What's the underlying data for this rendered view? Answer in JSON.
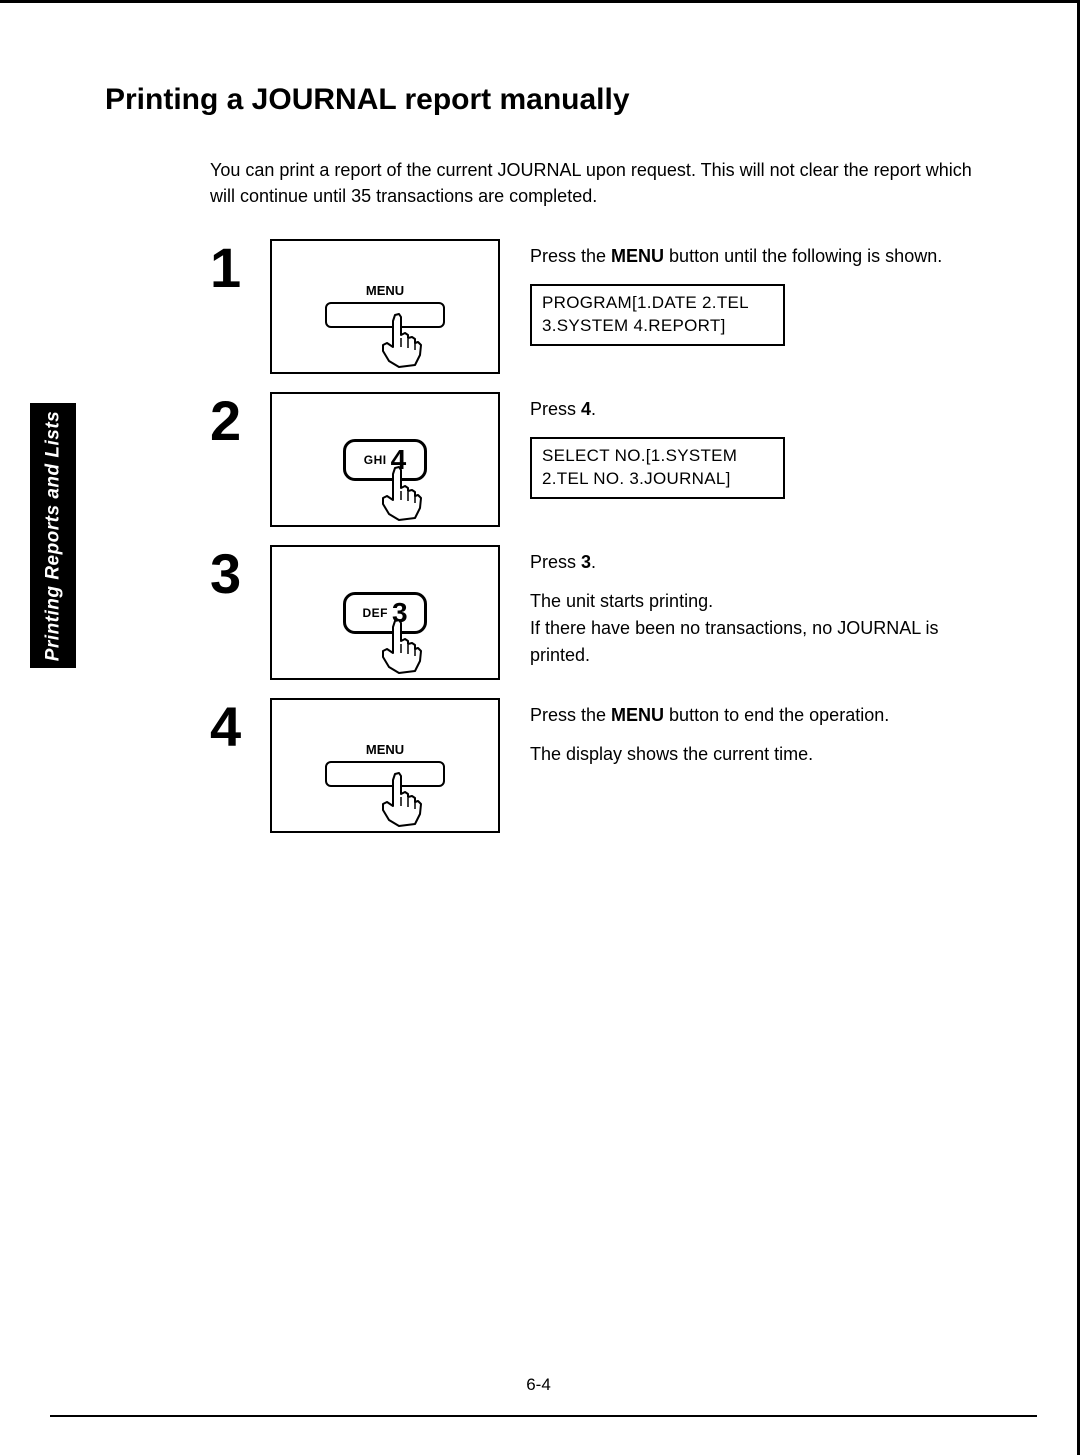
{
  "title": "Printing a JOURNAL report manually",
  "intro": "You can print a report of the current JOURNAL upon request. This will not clear the report which will continue until 35 transactions are completed.",
  "sidetab": "Printing Reports and Lists",
  "pagenum": "6-4",
  "steps": [
    {
      "num": "1",
      "illus": {
        "kind": "menu",
        "label": "MENU"
      },
      "desc_pre": "Press the ",
      "desc_bold": "MENU",
      "desc_post": " button until the following is shown.",
      "lcd": "PROGRAM[1.DATE  2.TEL\n3.SYSTEM  4.REPORT]"
    },
    {
      "num": "2",
      "illus": {
        "kind": "key",
        "small": "GHI",
        "big": "4"
      },
      "desc_pre": "Press ",
      "desc_bold": "4",
      "desc_post": ".",
      "lcd": "SELECT  NO.[1.SYSTEM\n2.TEL  NO.  3.JOURNAL]"
    },
    {
      "num": "3",
      "illus": {
        "kind": "key",
        "small": "DEF",
        "big": "3"
      },
      "desc_pre": "Press ",
      "desc_bold": "3",
      "desc_post": ".",
      "extra": "The unit starts printing.\nIf there have been no transactions, no JOURNAL is printed."
    },
    {
      "num": "4",
      "illus": {
        "kind": "menu",
        "label": "MENU"
      },
      "desc_pre": "Press the ",
      "desc_bold": "MENU",
      "desc_post": " button to end the operation.",
      "extra": "The display shows the current time."
    }
  ]
}
